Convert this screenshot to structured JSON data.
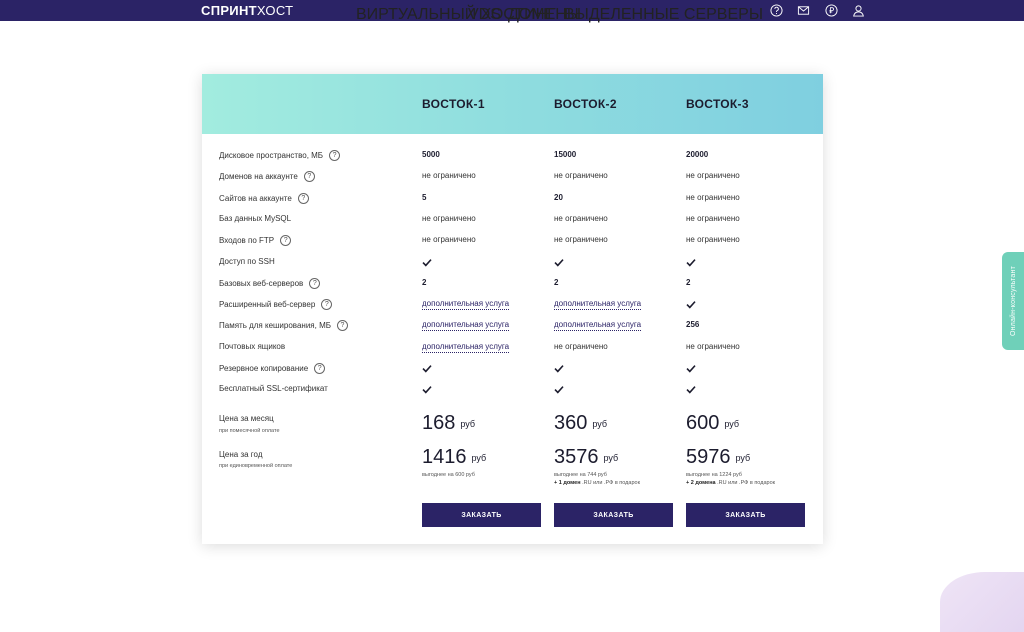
{
  "nav": {
    "logo_bold": "СПРИНТ",
    "logo_light": "ХОСТ",
    "links": [
      "ВИРТУАЛЬНЫЙ ХОСТИНГ",
      "VDS",
      "ДОМЕНЫ",
      "ВЫДЕЛЕННЫЕ СЕРВЕРЫ"
    ],
    "icons": [
      "help-icon",
      "mail-icon",
      "ruble-icon",
      "user-icon"
    ]
  },
  "plans": [
    "ВОСТОК-1",
    "ВОСТОК-2",
    "ВОСТОК-3"
  ],
  "help_glyph": "?",
  "rows": [
    {
      "label": "Дисковое пространство, МБ",
      "help": true,
      "cells": [
        {
          "t": "5000",
          "b": true
        },
        {
          "t": "15000",
          "b": true
        },
        {
          "t": "20000",
          "b": true
        }
      ]
    },
    {
      "label": "Доменов на аккаунте",
      "help": true,
      "cells": [
        {
          "t": "не ограничено"
        },
        {
          "t": "не ограничено"
        },
        {
          "t": "не ограничено"
        }
      ]
    },
    {
      "label": "Сайтов на аккаунте",
      "help": true,
      "cells": [
        {
          "t": "5",
          "b": true
        },
        {
          "t": "20",
          "b": true
        },
        {
          "t": "не ограничено"
        }
      ]
    },
    {
      "label": "Баз данных MySQL",
      "help": false,
      "cells": [
        {
          "t": "не ограничено"
        },
        {
          "t": "не ограничено"
        },
        {
          "t": "не ограничено"
        }
      ]
    },
    {
      "label": "Входов по FTP",
      "help": true,
      "cells": [
        {
          "t": "не ограничено"
        },
        {
          "t": "не ограничено"
        },
        {
          "t": "не ограничено"
        }
      ]
    },
    {
      "label": "Доступ по SSH",
      "help": false,
      "cells": [
        {
          "check": true
        },
        {
          "check": true
        },
        {
          "check": true
        }
      ]
    },
    {
      "label": "Базовых веб-серверов",
      "help": true,
      "cells": [
        {
          "t": "2",
          "b": true
        },
        {
          "t": "2",
          "b": true
        },
        {
          "t": "2",
          "b": true
        }
      ]
    },
    {
      "label": "Расширенный веб-сервер",
      "help": true,
      "cells": [
        {
          "t": "дополнительная услуга",
          "link": true
        },
        {
          "t": "дополнительная услуга",
          "link": true
        },
        {
          "check": true
        }
      ]
    },
    {
      "label": "Память для кеширования, МБ",
      "help": true,
      "cells": [
        {
          "t": "дополнительная услуга",
          "link": true
        },
        {
          "t": "дополнительная услуга",
          "link": true
        },
        {
          "t": "256",
          "b": true
        }
      ]
    },
    {
      "label": "Почтовых ящиков",
      "help": false,
      "cells": [
        {
          "t": "дополнительная услуга",
          "link": true
        },
        {
          "t": "не ограничено"
        },
        {
          "t": "не ограничено"
        }
      ]
    },
    {
      "label": "Резервное копирование",
      "help": true,
      "cells": [
        {
          "check": true
        },
        {
          "check": true
        },
        {
          "check": true
        }
      ]
    },
    {
      "label": "Бесплатный SSL-сертификат",
      "help": false,
      "cells": [
        {
          "check": true
        },
        {
          "check": true
        },
        {
          "check": true
        }
      ]
    }
  ],
  "price_month": {
    "label": "Цена за месяц",
    "sub": "при помесячной оплате",
    "values": [
      "168",
      "360",
      "600"
    ],
    "unit": "руб"
  },
  "price_year": {
    "label": "Цена за год",
    "sub": "при единовременной оплате",
    "values": [
      "1416",
      "3576",
      "5976"
    ],
    "unit": "руб",
    "notes": [
      {
        "line1": "выгоднее на 600 руб",
        "line2_bold": "",
        "line2": ""
      },
      {
        "line1": "выгоднее на 744 руб",
        "line2_bold": "+ 1 домен",
        "line2": " .RU или .РФ в подарок"
      },
      {
        "line1": "выгоднее на 1224 руб",
        "line2_bold": "+ 2 домена",
        "line2": " .RU или .РФ в подарок"
      }
    ]
  },
  "order_label": "ЗАКАЗАТЬ",
  "side_tab": "Онлайн-консультант"
}
